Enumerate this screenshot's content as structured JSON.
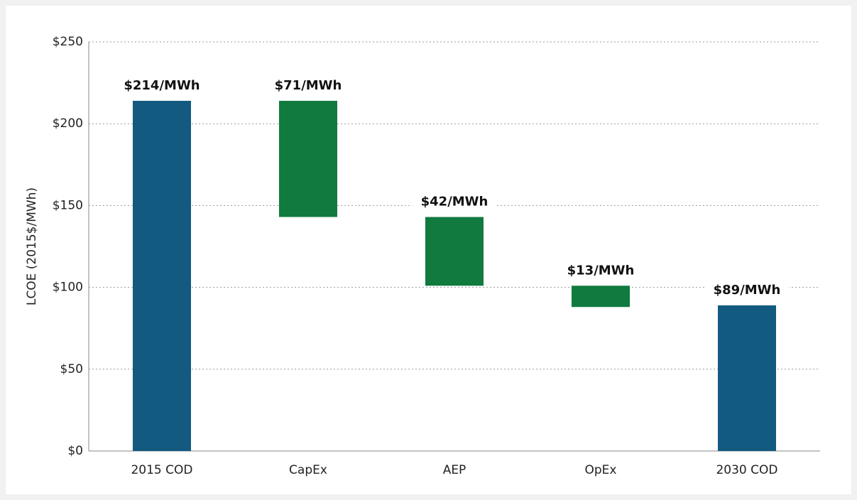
{
  "chart_data": {
    "type": "waterfall",
    "categories": [
      "2015 COD",
      "CapEx",
      "AEP",
      "OpEx",
      "2030 COD"
    ],
    "values": [
      214,
      71,
      42,
      13,
      89
    ],
    "measures": [
      "absolute",
      "decrease",
      "decrease",
      "decrease",
      "absolute"
    ],
    "value_labels": [
      "$214/MWh",
      "$71/MWh",
      "$42/MWh",
      "$13/MWh",
      "$89/MWh"
    ],
    "colors": {
      "absolute": "#135a80",
      "decrease": "#107a3f"
    },
    "y_label": "LCOE (2015$/MWh)",
    "ylim": [
      0,
      250
    ],
    "yticks": [
      {
        "value": 0,
        "label": "$0"
      },
      {
        "value": 50,
        "label": "$50"
      },
      {
        "value": 100,
        "label": "$100"
      },
      {
        "value": 150,
        "label": "$150"
      },
      {
        "value": 200,
        "label": "$200"
      },
      {
        "value": 250,
        "label": "$250"
      }
    ],
    "grid": true
  }
}
